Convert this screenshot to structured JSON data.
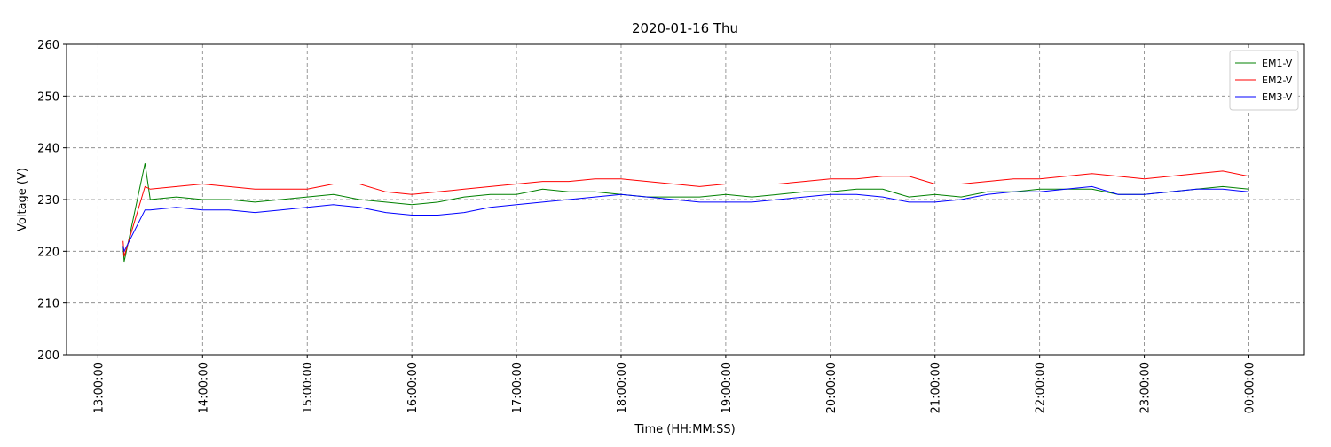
{
  "chart_data": {
    "type": "line",
    "title": "2020-01-16 Thu",
    "x_label": "Time (HH:MM:SS)",
    "y_label": "Voltage (V)",
    "xlim": [
      12.7,
      24.53
    ],
    "ylim": [
      200,
      260
    ],
    "xticks": [
      {
        "value": 13,
        "label": "13:00:00"
      },
      {
        "value": 14,
        "label": "14:00:00"
      },
      {
        "value": 15,
        "label": "15:00:00"
      },
      {
        "value": 16,
        "label": "16:00:00"
      },
      {
        "value": 17,
        "label": "17:00:00"
      },
      {
        "value": 18,
        "label": "18:00:00"
      },
      {
        "value": 19,
        "label": "19:00:00"
      },
      {
        "value": 20,
        "label": "20:00:00"
      },
      {
        "value": 21,
        "label": "21:00:00"
      },
      {
        "value": 22,
        "label": "22:00:00"
      },
      {
        "value": 23,
        "label": "23:00:00"
      },
      {
        "value": 24,
        "label": "00:00:00"
      }
    ],
    "yticks": [
      200,
      210,
      220,
      230,
      240,
      250,
      260
    ],
    "grid": true,
    "legend": "upper right",
    "x": [
      13.24,
      13.25,
      13.45,
      13.5,
      13.75,
      14.0,
      14.25,
      14.5,
      14.75,
      15.0,
      15.25,
      15.5,
      15.75,
      16.0,
      16.25,
      16.5,
      16.75,
      17.0,
      17.25,
      17.5,
      17.75,
      18.0,
      18.25,
      18.5,
      18.75,
      19.0,
      19.25,
      19.5,
      19.75,
      20.0,
      20.25,
      20.5,
      20.75,
      21.0,
      21.25,
      21.5,
      21.75,
      22.0,
      22.25,
      22.5,
      22.75,
      23.0,
      23.25,
      23.5,
      23.75,
      24.0
    ],
    "series": [
      {
        "name": "EM1-V",
        "color": "#008000",
        "values": [
          221,
          218,
          237,
          230,
          230.5,
          230,
          230,
          229.5,
          230,
          230.5,
          231,
          230,
          229.5,
          229,
          229.5,
          230.5,
          231,
          231,
          232,
          231.5,
          231.5,
          231,
          230.5,
          230.5,
          230.5,
          231,
          230.5,
          231,
          231.5,
          231.5,
          232,
          232,
          230.5,
          231,
          230.5,
          231.5,
          231.5,
          232,
          232,
          232,
          231,
          231,
          231.5,
          232,
          232.5,
          232
        ]
      },
      {
        "name": "EM2-V",
        "color": "#ff0000",
        "values": [
          222,
          219,
          232.5,
          232,
          232.5,
          233,
          232.5,
          232,
          232,
          232,
          233,
          233,
          231.5,
          231,
          231.5,
          232,
          232.5,
          233,
          233.5,
          233.5,
          234,
          234,
          233.5,
          233,
          232.5,
          233,
          233,
          233,
          233.5,
          234,
          234,
          234.5,
          234.5,
          233,
          233,
          233.5,
          234,
          234,
          234.5,
          235,
          234.5,
          234,
          234.5,
          235,
          235.5,
          234.5
        ]
      },
      {
        "name": "EM3-V",
        "color": "#0000ff",
        "values": [
          221,
          220,
          228,
          228,
          228.5,
          228,
          228,
          227.5,
          228,
          228.5,
          229,
          228.5,
          227.5,
          227,
          227,
          227.5,
          228.5,
          229,
          229.5,
          230,
          230.5,
          231,
          230.5,
          230,
          229.5,
          229.5,
          229.5,
          230,
          230.5,
          231,
          231,
          230.5,
          229.5,
          229.5,
          230,
          231,
          231.5,
          231.5,
          232,
          232.5,
          231,
          231,
          231.5,
          232,
          232,
          231.5
        ]
      }
    ]
  }
}
